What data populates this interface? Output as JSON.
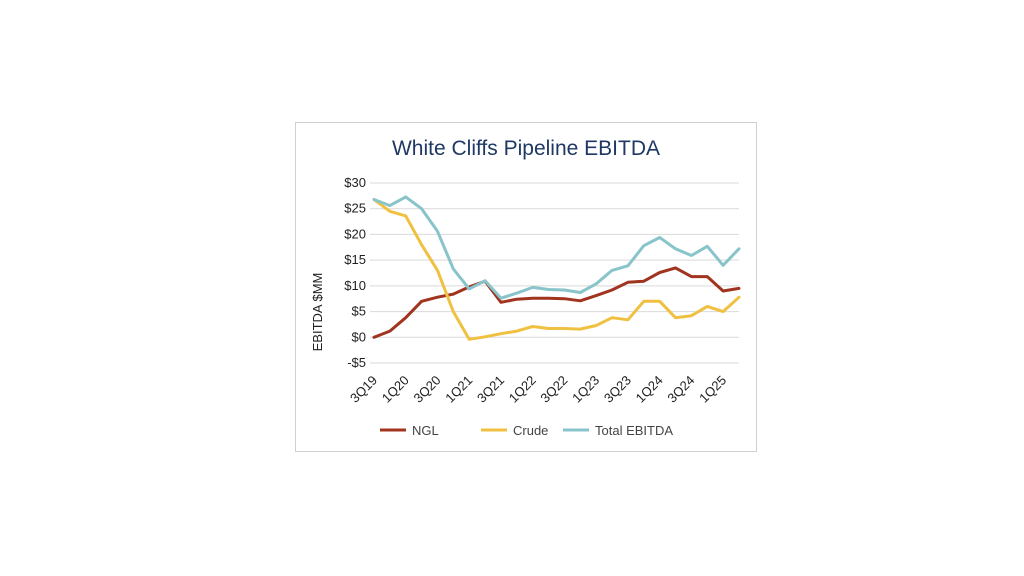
{
  "chart_data": {
    "type": "line",
    "title": "White Cliffs Pipeline EBITDA",
    "ylabel": "EBITDA $MM",
    "xlabel": "",
    "ylim": [
      -5,
      30
    ],
    "yticks": [
      30,
      25,
      20,
      15,
      10,
      5,
      0,
      -5
    ],
    "ytick_labels": [
      "$30",
      "$25",
      "$20",
      "$15",
      "$10",
      "$5",
      "$0",
      "-$5"
    ],
    "grid": true,
    "legend_position": "bottom",
    "categories": [
      "3Q19",
      "4Q19",
      "1Q20",
      "2Q20",
      "3Q20",
      "4Q20",
      "1Q21",
      "2Q21",
      "3Q21",
      "4Q21",
      "1Q22",
      "2Q22",
      "3Q22",
      "4Q22",
      "1Q23",
      "2Q23",
      "3Q23",
      "4Q23",
      "1Q24",
      "2Q24",
      "3Q24",
      "4Q24",
      "1Q25",
      "2Q25"
    ],
    "xtick_labels": [
      "3Q19",
      "1Q20",
      "3Q20",
      "1Q21",
      "3Q21",
      "1Q22",
      "3Q22",
      "1Q23",
      "3Q23",
      "1Q24",
      "3Q24",
      "1Q25"
    ],
    "series": [
      {
        "name": "NGL",
        "color": "#a0341f",
        "values": [
          0,
          1.2,
          3.8,
          7.0,
          7.8,
          8.4,
          9.8,
          10.9,
          6.8,
          7.4,
          7.6,
          7.6,
          7.5,
          7.1,
          8.1,
          9.2,
          10.7,
          10.9,
          12.6,
          13.5,
          11.8,
          11.8,
          9.0,
          9.5
        ]
      },
      {
        "name": "Crude",
        "color": "#f0c040",
        "values": [
          26.8,
          24.5,
          23.6,
          18.0,
          13.0,
          5.0,
          -0.4,
          0.1,
          0.7,
          1.2,
          2.1,
          1.7,
          1.7,
          1.6,
          2.3,
          3.8,
          3.4,
          7.0,
          7.0,
          3.8,
          4.2,
          6.0,
          5.0,
          7.8
        ]
      },
      {
        "name": "Total EBITDA",
        "color": "#88c4ca",
        "values": [
          26.8,
          25.6,
          27.3,
          25.0,
          20.6,
          13.3,
          9.4,
          11.0,
          7.6,
          8.6,
          9.7,
          9.3,
          9.2,
          8.7,
          10.4,
          13.0,
          13.9,
          17.8,
          19.4,
          17.2,
          15.9,
          17.7,
          14.0,
          17.2
        ]
      }
    ]
  }
}
